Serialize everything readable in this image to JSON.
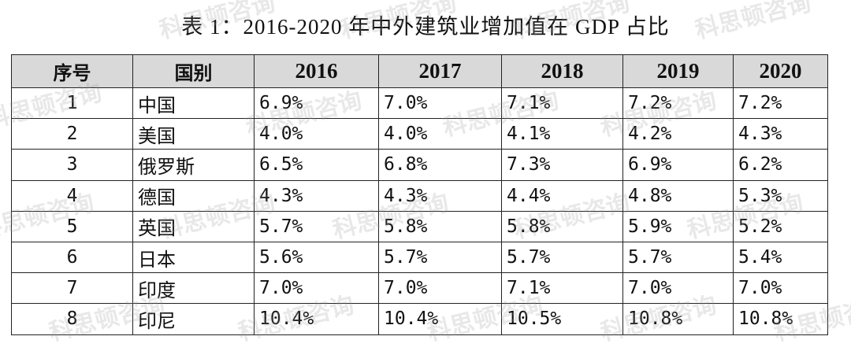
{
  "title": "表 1：2016-2020 年中外建筑业增加值在 GDP 占比",
  "watermark": "科思顿咨询",
  "table": {
    "header": [
      "序号",
      "国别",
      "2016",
      "2017",
      "2018",
      "2019",
      "2020"
    ],
    "rows": [
      [
        "1",
        "中国",
        "6.9%",
        "7.0%",
        "7.1%",
        "7.2%",
        "7.2%"
      ],
      [
        "2",
        "美国",
        "4.0%",
        "4.0%",
        "4.1%",
        "4.2%",
        "4.3%"
      ],
      [
        "3",
        "俄罗斯",
        "6.5%",
        "6.8%",
        "7.3%",
        "6.9%",
        "6.2%"
      ],
      [
        "4",
        "德国",
        "4.3%",
        "4.3%",
        "4.4%",
        "4.8%",
        "5.3%"
      ],
      [
        "5",
        "英国",
        "5.7%",
        "5.8%",
        "5.8%",
        "5.9%",
        "5.2%"
      ],
      [
        "6",
        "日本",
        "5.6%",
        "5.7%",
        "5.7%",
        "5.7%",
        "5.4%"
      ],
      [
        "7",
        "印度",
        "7.0%",
        "7.0%",
        "7.1%",
        "7.0%",
        "7.0%"
      ],
      [
        "8",
        "印尼",
        "10.4%",
        "10.4%",
        "10.5%",
        "10.8%",
        "10.8%"
      ]
    ]
  }
}
